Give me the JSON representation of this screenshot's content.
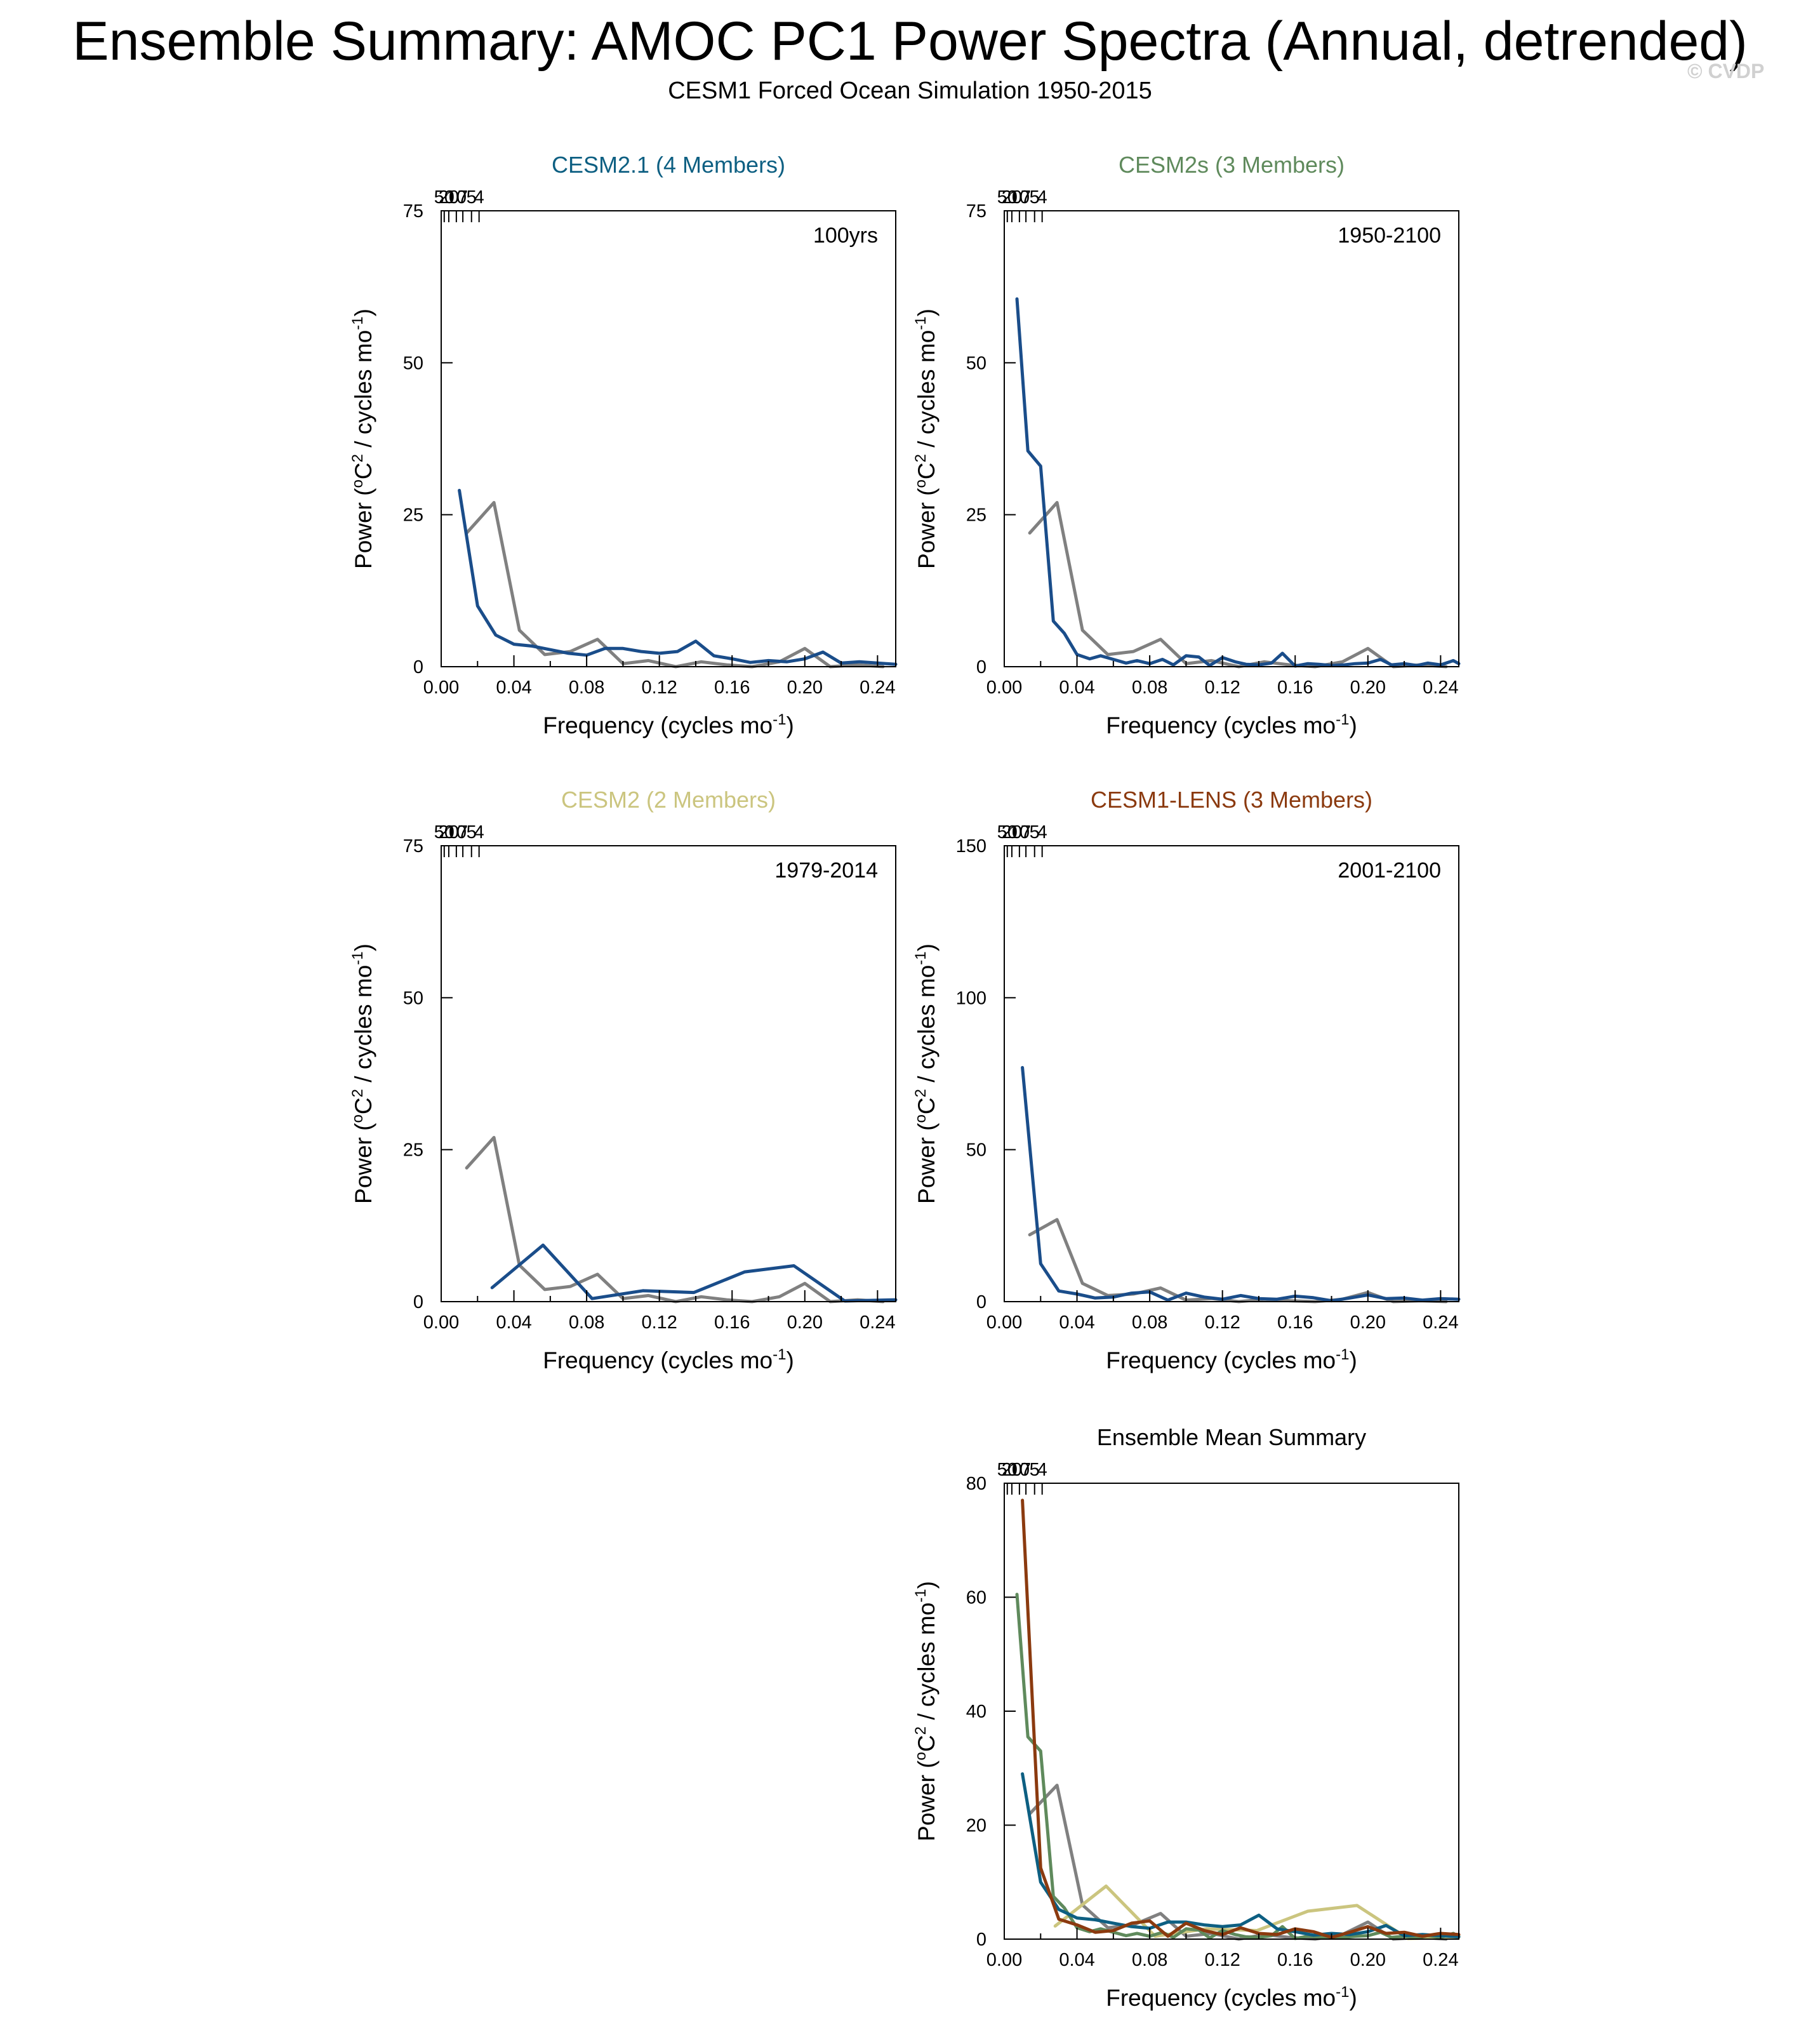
{
  "page": {
    "title": "Ensemble Summary: AMOC PC1 Power Spectra (Annual, detrended)",
    "subtitle": "CESM1 Forced Ocean Simulation 1950-2015",
    "watermark": "© CVDP"
  },
  "colors": {
    "CESM2.1": "#0d5f82",
    "CESM2s": "#5f8a5c",
    "CESM2": "#cbc57f",
    "CESM1-LENS": "#8b3a0f",
    "panel_line": "#1a4d8a",
    "observations": "#808080",
    "axis": "#000000"
  },
  "axis_text": {
    "xlabel_main": "Frequency (cycles mo",
    "xlabel_sup": "-1",
    "xlabel_end": ")",
    "ylabel_a": "Power (",
    "ylabel_deg": "o",
    "ylabel_b": "C",
    "ylabel_sq": "2",
    "ylabel_c": " / cycles mo",
    "ylabel_sup": "-1",
    "ylabel_d": ")"
  },
  "chart_data": [
    {
      "type": "line",
      "title": "CESM2.1 (4 Members)",
      "title_color_key": "CESM2.1",
      "period_label": "100yrs",
      "xlim": [
        0,
        0.25
      ],
      "ylim": [
        0,
        75
      ],
      "xticks": [
        "0.00",
        "0.04",
        "0.08",
        "0.12",
        "0.16",
        "0.20",
        "0.24"
      ],
      "yticks": [
        "0",
        "25",
        "50",
        "75"
      ],
      "top_ticks": [
        "50",
        "20",
        "10",
        "7",
        "5",
        "4"
      ],
      "series": [
        {
          "name": "Observations",
          "color_key": "observations",
          "x": [
            0.014,
            0.029,
            0.043,
            0.057,
            0.071,
            0.086,
            0.1,
            0.114,
            0.129,
            0.143,
            0.157,
            0.171,
            0.186,
            0.2,
            0.214,
            0.229,
            0.243
          ],
          "y": [
            22,
            27,
            6,
            2,
            2.5,
            4.5,
            0.5,
            1,
            0,
            0.8,
            0.3,
            0,
            0.8,
            3,
            0,
            0.3,
            0
          ]
        },
        {
          "name": "CESM2.1",
          "color_key": "panel_line",
          "x": [
            0.01,
            0.02,
            0.03,
            0.04,
            0.05,
            0.06,
            0.07,
            0.08,
            0.09,
            0.1,
            0.11,
            0.12,
            0.13,
            0.14,
            0.15,
            0.16,
            0.17,
            0.18,
            0.19,
            0.2,
            0.21,
            0.22,
            0.23,
            0.24,
            0.25
          ],
          "y": [
            29,
            10,
            5.2,
            3.7,
            3.4,
            2.8,
            2.2,
            1.9,
            3.0,
            3.0,
            2.5,
            2.2,
            2.5,
            4.2,
            1.8,
            1.3,
            0.7,
            1.0,
            0.8,
            1.3,
            2.4,
            0.6,
            0.8,
            0.6,
            0.4
          ]
        }
      ]
    },
    {
      "type": "line",
      "title": "CESM2s (3 Members)",
      "title_color_key": "CESM2s",
      "period_label": "1950-2100",
      "xlim": [
        0,
        0.25
      ],
      "ylim": [
        0,
        75
      ],
      "xticks": [
        "0.00",
        "0.04",
        "0.08",
        "0.12",
        "0.16",
        "0.20",
        "0.24"
      ],
      "yticks": [
        "0",
        "25",
        "50",
        "75"
      ],
      "top_ticks": [
        "50",
        "20",
        "10",
        "7",
        "5",
        "4"
      ],
      "series": [
        {
          "name": "Observations",
          "color_key": "observations",
          "x": [
            0.014,
            0.029,
            0.043,
            0.057,
            0.071,
            0.086,
            0.1,
            0.114,
            0.129,
            0.143,
            0.157,
            0.171,
            0.186,
            0.2,
            0.214,
            0.229,
            0.243
          ],
          "y": [
            22,
            27,
            6,
            2,
            2.5,
            4.5,
            0.5,
            1,
            0,
            0.8,
            0.3,
            0,
            0.8,
            3,
            0,
            0.3,
            0
          ]
        },
        {
          "name": "CESM2s",
          "color_key": "panel_line",
          "x": [
            0.007,
            0.013,
            0.02,
            0.027,
            0.033,
            0.04,
            0.047,
            0.053,
            0.06,
            0.067,
            0.073,
            0.08,
            0.087,
            0.093,
            0.1,
            0.107,
            0.113,
            0.12,
            0.127,
            0.133,
            0.14,
            0.147,
            0.153,
            0.16,
            0.167,
            0.173,
            0.18,
            0.187,
            0.193,
            0.2,
            0.207,
            0.213,
            0.22,
            0.227,
            0.233,
            0.24,
            0.247,
            0.25
          ],
          "y": [
            60.5,
            35.5,
            33,
            7.5,
            5.5,
            2,
            1.3,
            1.8,
            1.2,
            0.6,
            1.0,
            0.5,
            1.2,
            0.3,
            1.8,
            1.6,
            0.2,
            1.5,
            0.8,
            0.4,
            0.3,
            0.6,
            2.2,
            0.1,
            0.5,
            0.4,
            0.2,
            0.3,
            0.5,
            0.6,
            1.2,
            0.3,
            0.5,
            0.2,
            0.6,
            0.3,
            1.0,
            0.5
          ]
        }
      ]
    },
    {
      "type": "line",
      "title": "CESM2 (2 Members)",
      "title_color_key": "CESM2",
      "period_label": "1979-2014",
      "xlim": [
        0,
        0.25
      ],
      "ylim": [
        0,
        75
      ],
      "xticks": [
        "0.00",
        "0.04",
        "0.08",
        "0.12",
        "0.16",
        "0.20",
        "0.24"
      ],
      "yticks": [
        "0",
        "25",
        "50",
        "75"
      ],
      "top_ticks": [
        "50",
        "20",
        "10",
        "7",
        "5",
        "4"
      ],
      "series": [
        {
          "name": "Observations",
          "color_key": "observations",
          "x": [
            0.014,
            0.029,
            0.043,
            0.057,
            0.071,
            0.086,
            0.1,
            0.114,
            0.129,
            0.143,
            0.157,
            0.171,
            0.186,
            0.2,
            0.214,
            0.229,
            0.243
          ],
          "y": [
            22,
            27,
            6,
            2,
            2.5,
            4.5,
            0.5,
            1,
            0,
            0.8,
            0.3,
            0,
            0.8,
            3,
            0,
            0.3,
            0
          ]
        },
        {
          "name": "CESM2",
          "color_key": "panel_line",
          "x": [
            0.028,
            0.056,
            0.083,
            0.111,
            0.139,
            0.167,
            0.194,
            0.222,
            0.25
          ],
          "y": [
            2.3,
            9.3,
            0.5,
            1.8,
            1.5,
            4.9,
            5.9,
            0.1,
            0.3
          ]
        }
      ]
    },
    {
      "type": "line",
      "title": "CESM1-LENS (3 Members)",
      "title_color_key": "CESM1-LENS",
      "period_label": "2001-2100",
      "xlim": [
        0,
        0.25
      ],
      "ylim": [
        0,
        150
      ],
      "xticks": [
        "0.00",
        "0.04",
        "0.08",
        "0.12",
        "0.16",
        "0.20",
        "0.24"
      ],
      "yticks": [
        "0",
        "50",
        "100",
        "150"
      ],
      "top_ticks": [
        "50",
        "20",
        "10",
        "7",
        "5",
        "4"
      ],
      "series": [
        {
          "name": "Observations",
          "color_key": "observations",
          "x": [
            0.014,
            0.029,
            0.043,
            0.057,
            0.071,
            0.086,
            0.1,
            0.114,
            0.129,
            0.143,
            0.157,
            0.171,
            0.186,
            0.2,
            0.214,
            0.229,
            0.243
          ],
          "y": [
            22,
            27,
            6,
            2,
            2.5,
            4.5,
            0.5,
            1,
            0,
            0.8,
            0.3,
            0,
            0.8,
            3,
            0,
            0.3,
            0
          ]
        },
        {
          "name": "CESM1-LENS",
          "color_key": "panel_line",
          "x": [
            0.01,
            0.02,
            0.03,
            0.04,
            0.05,
            0.06,
            0.07,
            0.08,
            0.09,
            0.1,
            0.11,
            0.12,
            0.13,
            0.14,
            0.15,
            0.16,
            0.17,
            0.18,
            0.19,
            0.2,
            0.21,
            0.22,
            0.23,
            0.24,
            0.25
          ],
          "y": [
            77,
            12.5,
            3.5,
            2.5,
            1.2,
            1.5,
            2.8,
            3.2,
            0.5,
            2.8,
            1.5,
            0.8,
            2.0,
            1.0,
            0.8,
            1.8,
            1.3,
            0.3,
            1.2,
            2.2,
            1.0,
            1.2,
            0.5,
            1.0,
            0.8
          ]
        }
      ]
    },
    {
      "type": "line",
      "title": "Ensemble Mean Summary",
      "title_color_key": "axis",
      "period_label": "",
      "xlim": [
        0,
        0.25
      ],
      "ylim": [
        0,
        80
      ],
      "xticks": [
        "0.00",
        "0.04",
        "0.08",
        "0.12",
        "0.16",
        "0.20",
        "0.24"
      ],
      "yticks": [
        "0",
        "20",
        "40",
        "60",
        "80"
      ],
      "top_ticks": [
        "50",
        "20",
        "10",
        "7",
        "5",
        "4"
      ],
      "series": [
        {
          "name": "Observations",
          "color_key": "observations",
          "x": [
            0.014,
            0.029,
            0.043,
            0.057,
            0.071,
            0.086,
            0.1,
            0.114,
            0.129,
            0.143,
            0.157,
            0.171,
            0.186,
            0.2,
            0.214,
            0.229,
            0.243
          ],
          "y": [
            22,
            27,
            6,
            2,
            2.5,
            4.5,
            0.5,
            1,
            0,
            0.8,
            0.3,
            0,
            0.8,
            3,
            0,
            0.3,
            0
          ]
        },
        {
          "name": "CESM2",
          "color_key": "CESM2",
          "x": [
            0.028,
            0.056,
            0.083,
            0.111,
            0.139,
            0.167,
            0.194,
            0.222,
            0.25
          ],
          "y": [
            2.3,
            9.3,
            0.5,
            1.8,
            1.5,
            4.9,
            5.9,
            0.1,
            0.3
          ]
        },
        {
          "name": "CESM2s",
          "color_key": "CESM2s",
          "x": [
            0.007,
            0.013,
            0.02,
            0.027,
            0.033,
            0.04,
            0.047,
            0.053,
            0.06,
            0.067,
            0.073,
            0.08,
            0.087,
            0.093,
            0.1,
            0.107,
            0.113,
            0.12,
            0.127,
            0.133,
            0.14,
            0.147,
            0.153,
            0.16,
            0.167,
            0.173,
            0.18,
            0.187,
            0.193,
            0.2,
            0.207,
            0.213,
            0.22,
            0.227,
            0.233,
            0.24,
            0.247,
            0.25
          ],
          "y": [
            60.5,
            35.5,
            33,
            7.5,
            5.5,
            2,
            1.3,
            1.8,
            1.2,
            0.6,
            1.0,
            0.5,
            1.2,
            0.3,
            1.8,
            1.6,
            0.2,
            1.5,
            0.8,
            0.4,
            0.3,
            0.6,
            2.2,
            0.1,
            0.5,
            0.4,
            0.2,
            0.3,
            0.5,
            0.6,
            1.2,
            0.3,
            0.5,
            0.2,
            0.6,
            0.3,
            1.0,
            0.5
          ]
        },
        {
          "name": "CESM2.1",
          "color_key": "CESM2.1",
          "x": [
            0.01,
            0.02,
            0.03,
            0.04,
            0.05,
            0.06,
            0.07,
            0.08,
            0.09,
            0.1,
            0.11,
            0.12,
            0.13,
            0.14,
            0.15,
            0.16,
            0.17,
            0.18,
            0.19,
            0.2,
            0.21,
            0.22,
            0.23,
            0.24,
            0.25
          ],
          "y": [
            29,
            10,
            5.2,
            3.7,
            3.4,
            2.8,
            2.2,
            1.9,
            3.0,
            3.0,
            2.5,
            2.2,
            2.5,
            4.2,
            1.8,
            1.3,
            0.7,
            1.0,
            0.8,
            1.3,
            2.4,
            0.6,
            0.8,
            0.6,
            0.4
          ]
        },
        {
          "name": "CESM1-LENS",
          "color_key": "CESM1-LENS",
          "x": [
            0.01,
            0.02,
            0.03,
            0.04,
            0.05,
            0.06,
            0.07,
            0.08,
            0.09,
            0.1,
            0.11,
            0.12,
            0.13,
            0.14,
            0.15,
            0.16,
            0.17,
            0.18,
            0.19,
            0.2,
            0.21,
            0.22,
            0.23,
            0.24,
            0.25
          ],
          "y": [
            77,
            12.5,
            3.5,
            2.5,
            1.2,
            1.5,
            2.8,
            3.2,
            0.5,
            2.8,
            1.5,
            0.8,
            2.0,
            1.0,
            0.8,
            1.8,
            1.3,
            0.3,
            1.2,
            2.2,
            1.0,
            1.2,
            0.5,
            1.0,
            0.8
          ]
        }
      ]
    }
  ]
}
